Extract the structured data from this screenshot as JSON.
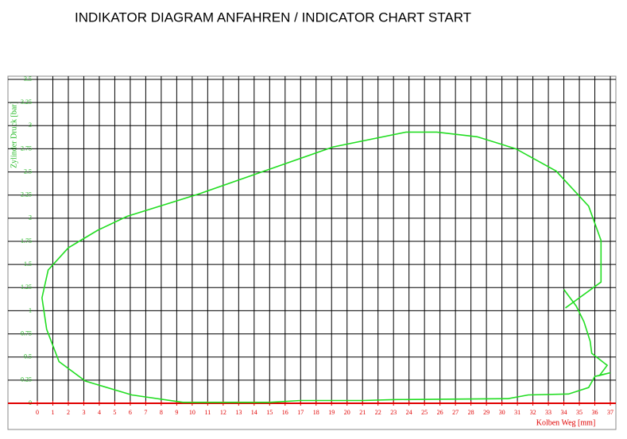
{
  "chart_data": {
    "type": "line",
    "title": "INDIKATOR  DIAGRAM  ANFAHREN      /  INDICATOR CHART START",
    "x_label": "Kolben Weg [mm]",
    "y_label": "Zylinder Druck [bar]",
    "xlim": [
      0,
      37
    ],
    "ylim": [
      0,
      3.5
    ],
    "xticks": [
      0,
      1,
      2,
      3,
      4,
      5,
      6,
      7,
      8,
      9,
      10,
      11,
      12,
      13,
      14,
      15,
      16,
      17,
      18,
      19,
      20,
      21,
      22,
      23,
      24,
      25,
      26,
      27,
      28,
      29,
      30,
      31,
      32,
      33,
      34,
      35,
      36,
      37
    ],
    "yticks": [
      0,
      0.25,
      0.5,
      0.75,
      1,
      1.25,
      1.5,
      1.75,
      2,
      2.25,
      2.5,
      2.75,
      3,
      3.25,
      3.5
    ],
    "grid": true,
    "x": [
      34.1,
      36.4,
      36.4,
      35.6,
      33.5,
      30.9,
      28.4,
      25.8,
      23.8,
      19.1,
      15.0,
      10.4,
      5.8,
      3.9,
      2.0,
      0.7,
      0.3,
      0.6,
      1.4,
      3.1,
      6.1,
      9.4,
      15.0,
      17.0,
      21.0,
      23.2,
      30.4,
      31.7,
      34.3,
      35.6,
      36.0,
      37.0,
      36.3,
      36.8,
      35.8,
      35.7,
      35.3,
      34.8,
      34.4,
      34.0
    ],
    "series": [
      {
        "name": "Zylinder Druck",
        "color": "#22dd22",
        "values": [
          1.03,
          1.31,
          1.76,
          2.13,
          2.51,
          2.75,
          2.88,
          2.93,
          2.93,
          2.77,
          2.53,
          2.26,
          2.02,
          1.87,
          1.68,
          1.44,
          1.14,
          0.8,
          0.45,
          0.24,
          0.09,
          0.01,
          0.01,
          0.03,
          0.03,
          0.04,
          0.05,
          0.09,
          0.1,
          0.17,
          0.29,
          0.33,
          0.3,
          0.41,
          0.54,
          0.67,
          0.88,
          1.05,
          1.14,
          1.23
        ]
      }
    ]
  }
}
